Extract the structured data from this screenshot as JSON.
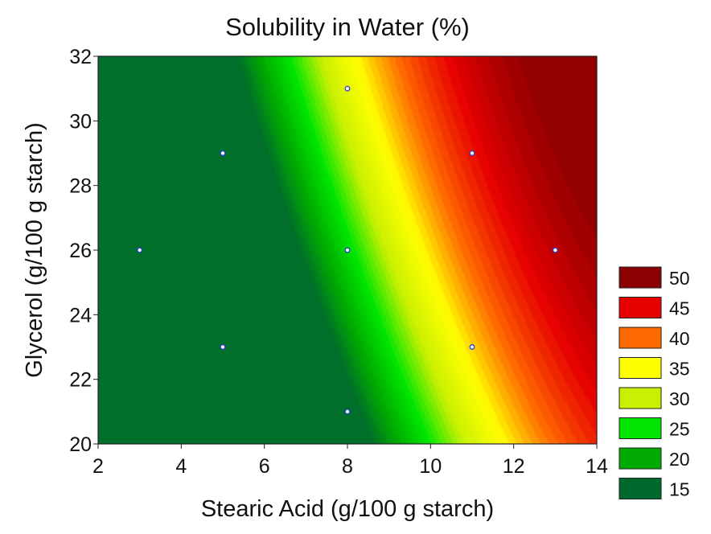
{
  "chart_data": {
    "type": "heatmap",
    "title": "Solubility in Water (%)",
    "xlabel": "Stearic Acid (g/100 g starch)",
    "ylabel": "Glycerol (g/100 g starch)",
    "xlim": [
      2,
      14
    ],
    "ylim": [
      20,
      32
    ],
    "x_ticks": [
      "2",
      "4",
      "6",
      "8",
      "10",
      "12",
      "14"
    ],
    "y_ticks": [
      "20",
      "22",
      "24",
      "26",
      "28",
      "30",
      "32"
    ],
    "grid": false,
    "legend_position": "right",
    "legend": [
      {
        "label": "50",
        "color": "#8b0000"
      },
      {
        "label": "45",
        "color": "#e60000"
      },
      {
        "label": "40",
        "color": "#ff6a00"
      },
      {
        "label": "35",
        "color": "#ffff00"
      },
      {
        "label": "30",
        "color": "#c8f000"
      },
      {
        "label": "25",
        "color": "#00e600"
      },
      {
        "label": "20",
        "color": "#00aa00"
      },
      {
        "label": "15",
        "color": "#006a2e"
      }
    ],
    "design_points": [
      {
        "x": 3,
        "y": 26
      },
      {
        "x": 5,
        "y": 23
      },
      {
        "x": 5,
        "y": 29
      },
      {
        "x": 8,
        "y": 21
      },
      {
        "x": 8,
        "y": 26
      },
      {
        "x": 8,
        "y": 31
      },
      {
        "x": 11,
        "y": 23
      },
      {
        "x": 11,
        "y": 29
      },
      {
        "x": 13,
        "y": 26
      }
    ],
    "contour_levels": [
      15,
      20,
      25,
      30,
      35,
      40,
      45,
      50
    ]
  }
}
